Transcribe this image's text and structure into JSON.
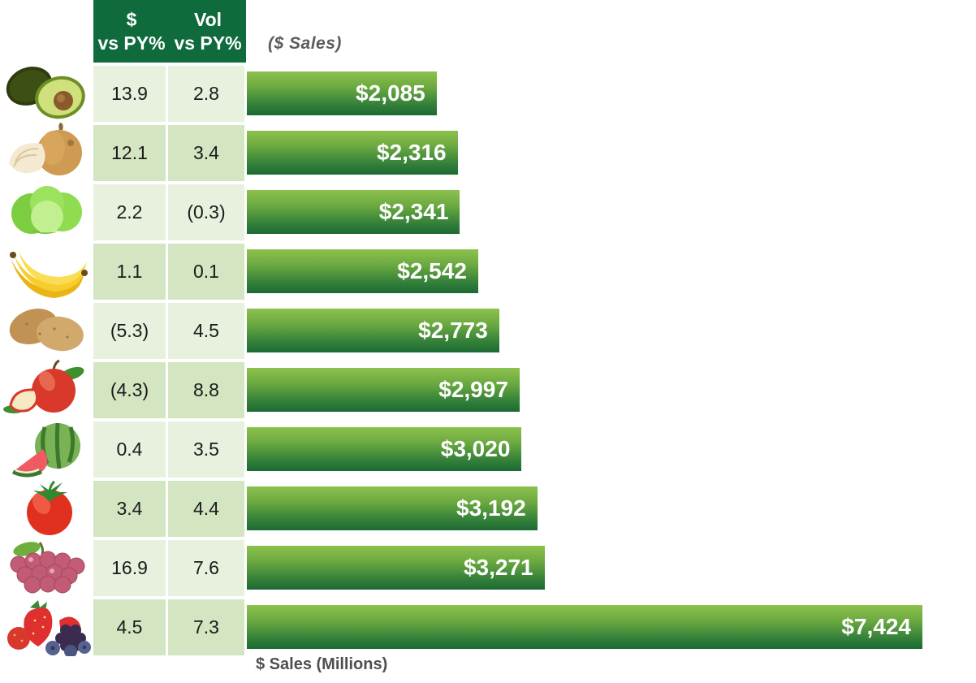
{
  "header": {
    "dollar_col": "$\nvs PY%",
    "vol_col": "Vol\nvs PY%"
  },
  "titles": {
    "bars_title": "($ Sales)",
    "x_axis_label": "$ Sales (Millions)"
  },
  "colors": {
    "header_bg": "#0F6A3C",
    "row_light": "#E8F0DE",
    "row_dark": "#D3E5C1",
    "bar_gradient_top": "#8EC14E",
    "bar_gradient_bottom": "#1B6A33",
    "bar_label_text": "#FFFFFF",
    "title_gray": "#5C5C5C"
  },
  "rows": [
    {
      "produce": "avocado",
      "icon": "avocado-icon",
      "dollar_vs_py": "13.9",
      "vol_vs_py": "2.8",
      "sales_label": "$2,085",
      "sales_value": 2085
    },
    {
      "produce": "onion",
      "icon": "onion-icon",
      "dollar_vs_py": "12.1",
      "vol_vs_py": "3.4",
      "sales_label": "$2,316",
      "sales_value": 2316
    },
    {
      "produce": "lettuce",
      "icon": "lettuce-icon",
      "dollar_vs_py": "2.2",
      "vol_vs_py": "(0.3)",
      "sales_label": "$2,341",
      "sales_value": 2341
    },
    {
      "produce": "banana",
      "icon": "banana-icon",
      "dollar_vs_py": "1.1",
      "vol_vs_py": "0.1",
      "sales_label": "$2,542",
      "sales_value": 2542
    },
    {
      "produce": "potato",
      "icon": "potato-icon",
      "dollar_vs_py": "(5.3)",
      "vol_vs_py": "4.5",
      "sales_label": "$2,773",
      "sales_value": 2773
    },
    {
      "produce": "apple",
      "icon": "apple-icon",
      "dollar_vs_py": "(4.3)",
      "vol_vs_py": "8.8",
      "sales_label": "$2,997",
      "sales_value": 2997
    },
    {
      "produce": "watermelon",
      "icon": "watermelon-icon",
      "dollar_vs_py": "0.4",
      "vol_vs_py": "3.5",
      "sales_label": "$3,020",
      "sales_value": 3020
    },
    {
      "produce": "tomato",
      "icon": "tomato-icon",
      "dollar_vs_py": "3.4",
      "vol_vs_py": "4.4",
      "sales_label": "$3,192",
      "sales_value": 3192
    },
    {
      "produce": "grapes",
      "icon": "grapes-icon",
      "dollar_vs_py": "16.9",
      "vol_vs_py": "7.6",
      "sales_label": "$3,271",
      "sales_value": 3271
    },
    {
      "produce": "berries",
      "icon": "berries-icon",
      "dollar_vs_py": "4.5",
      "vol_vs_py": "7.3",
      "sales_label": "$7,424",
      "sales_value": 7424
    }
  ],
  "chart_data": {
    "type": "bar",
    "orientation": "horizontal",
    "title": "($ Sales)",
    "xlabel": "$ Sales (Millions)",
    "categories": [
      "avocado",
      "onion",
      "lettuce",
      "banana",
      "potato",
      "apple",
      "watermelon",
      "tomato",
      "grapes",
      "berries"
    ],
    "series": [
      {
        "name": "$ Sales",
        "values": [
          2085,
          2316,
          2341,
          2542,
          2773,
          2997,
          3020,
          3192,
          3271,
          7424
        ],
        "labels": [
          "$2,085",
          "$2,316",
          "$2,341",
          "$2,542",
          "$2,773",
          "$2,997",
          "$3,020",
          "$3,192",
          "$3,271",
          "$7,424"
        ]
      },
      {
        "name": "$ vs PY%",
        "values": [
          13.9,
          12.1,
          2.2,
          1.1,
          -5.3,
          -4.3,
          0.4,
          3.4,
          16.9,
          4.5
        ],
        "labels": [
          "13.9",
          "12.1",
          "2.2",
          "1.1",
          "(5.3)",
          "(4.3)",
          "0.4",
          "3.4",
          "16.9",
          "4.5"
        ]
      },
      {
        "name": "Vol vs PY%",
        "values": [
          2.8,
          3.4,
          -0.3,
          0.1,
          4.5,
          8.8,
          3.5,
          4.4,
          7.6,
          7.3
        ],
        "labels": [
          "2.8",
          "3.4",
          "(0.3)",
          "0.1",
          "4.5",
          "8.8",
          "3.5",
          "4.4",
          "7.6",
          "7.3"
        ]
      }
    ],
    "xlim": [
      0,
      7424
    ],
    "grid": false,
    "legend": false,
    "value_labels_position": "inside-end"
  }
}
